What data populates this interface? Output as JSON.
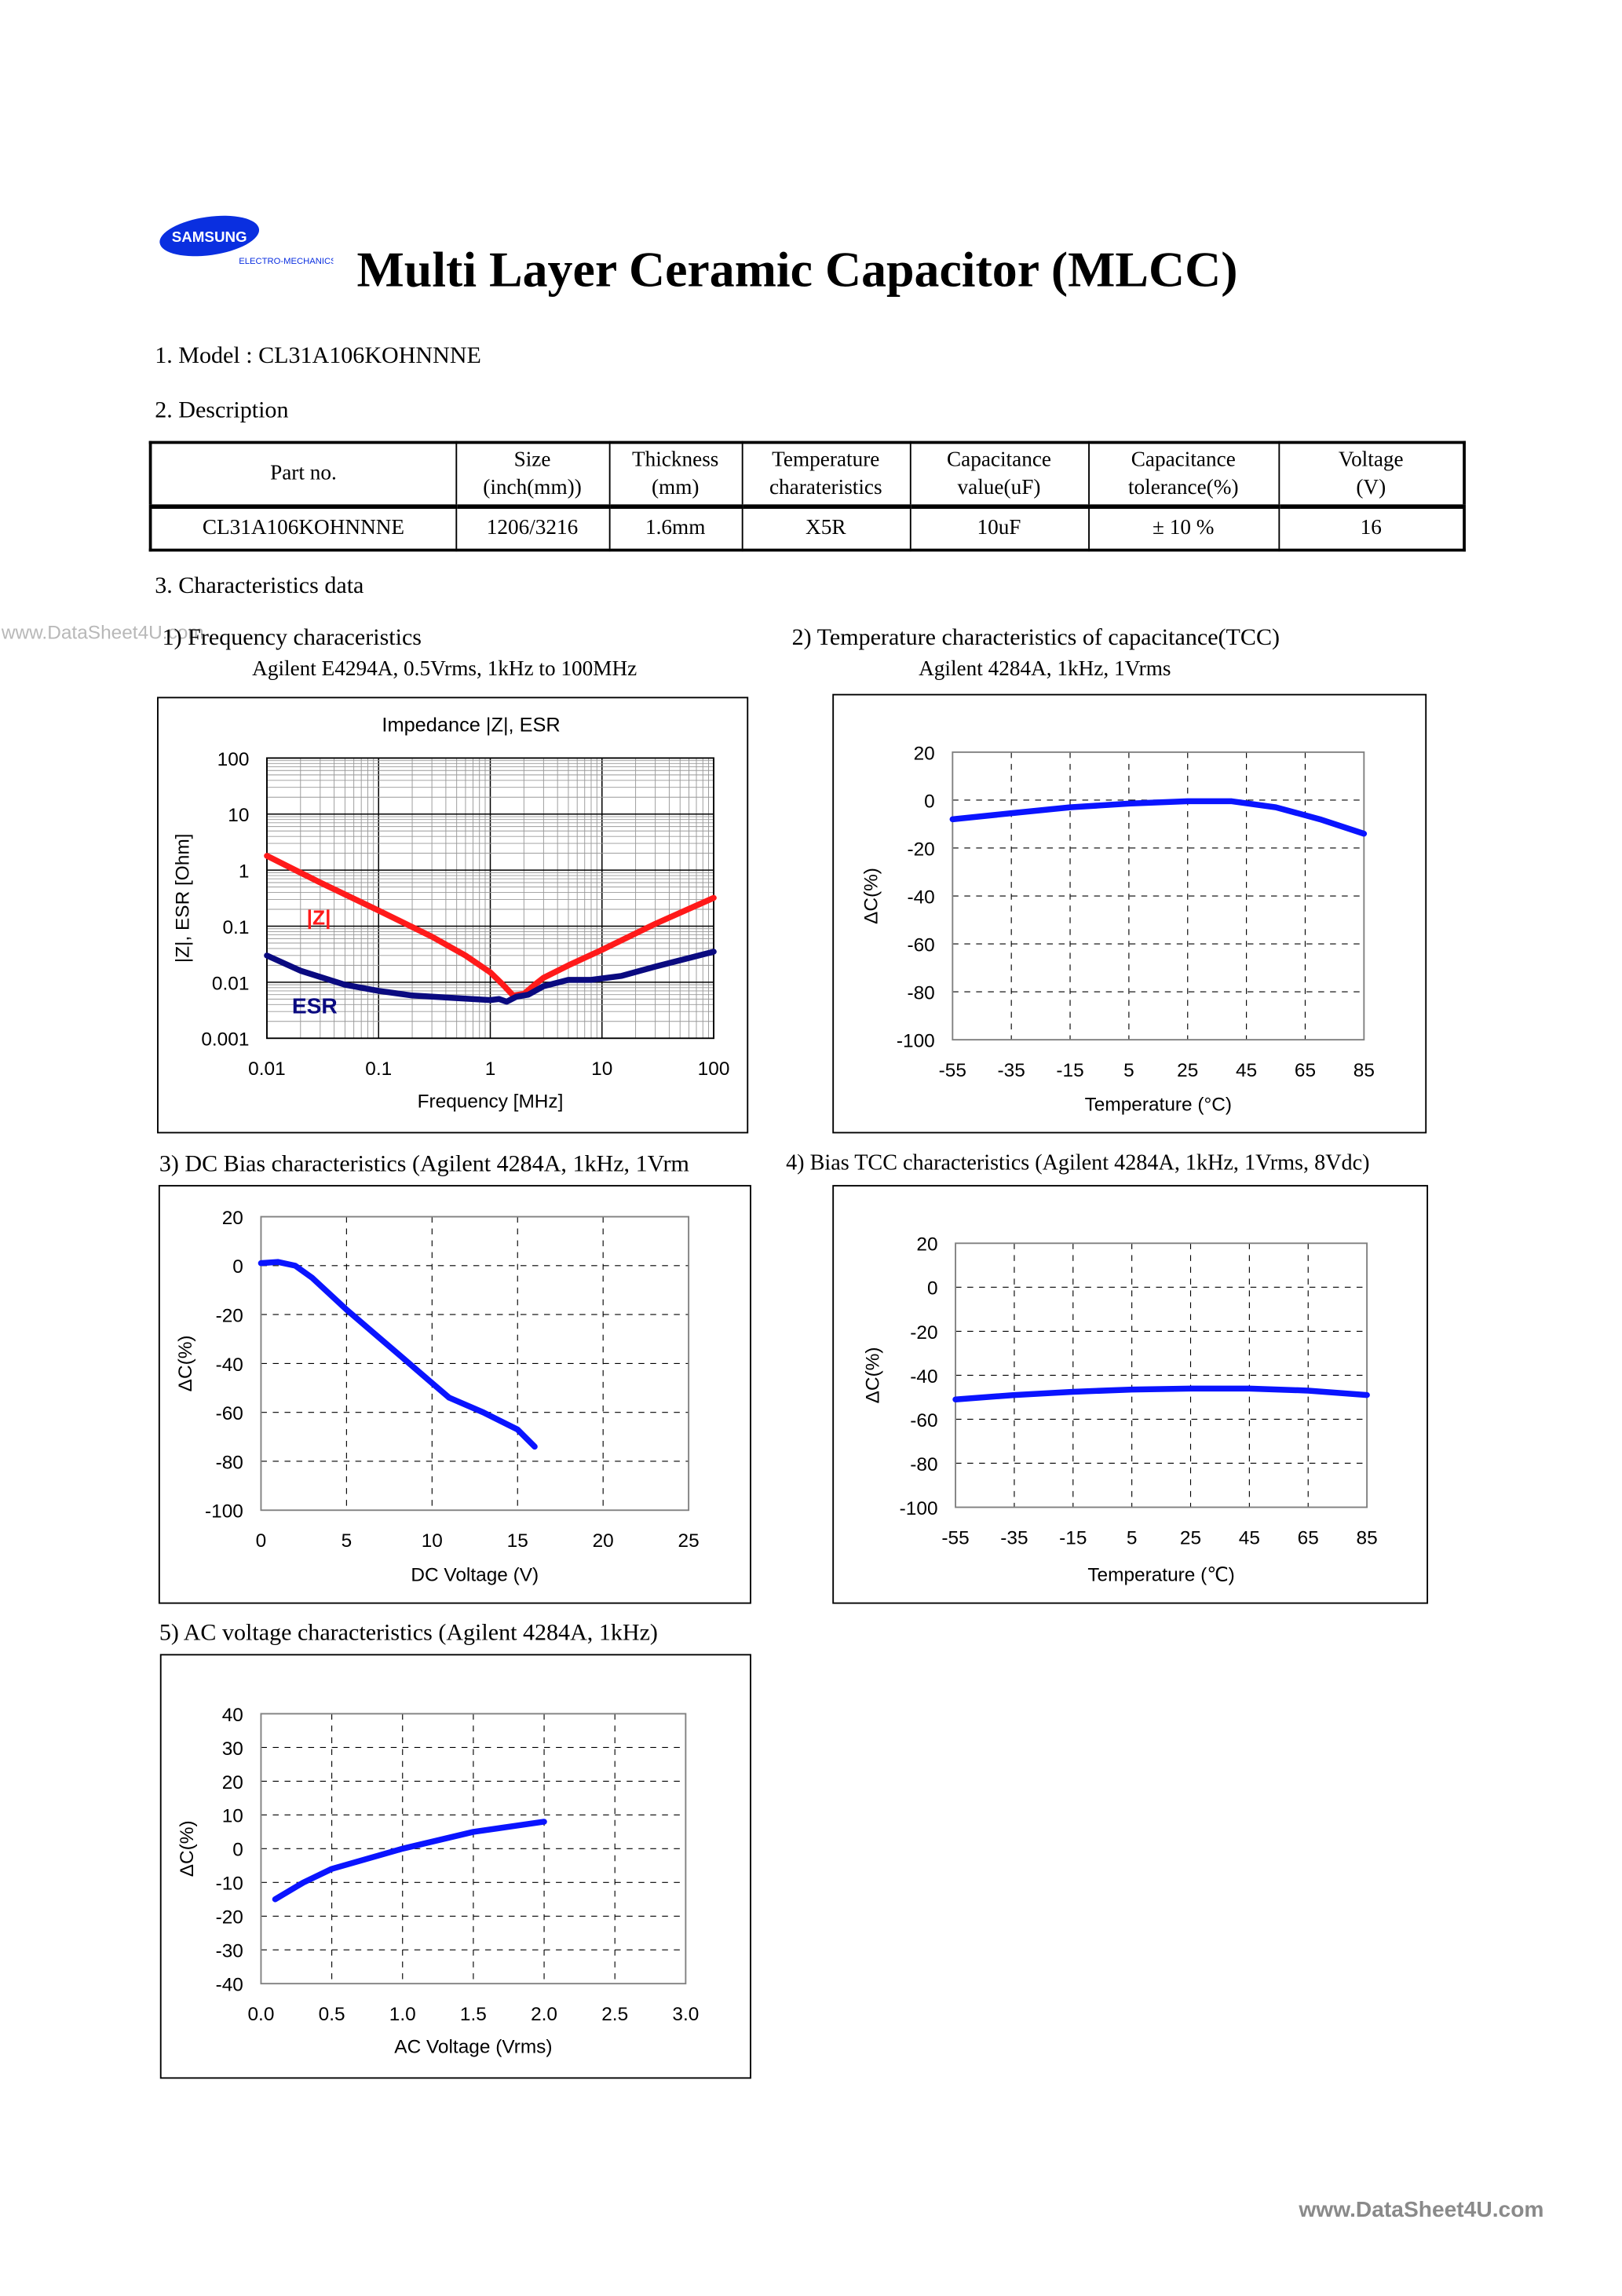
{
  "header": {
    "logo_text": "SAMSUNG",
    "logo_subtext": "ELECTRO-MECHANICS",
    "title": "Multi Layer Ceramic Capacitor (MLCC)"
  },
  "model_line": "1. Model : CL31A106KOHNNNE",
  "description_heading": "2. Description",
  "table": {
    "headers": [
      [
        "Part no.",
        ""
      ],
      [
        "Size",
        "(inch(mm))"
      ],
      [
        "Thickness",
        "(mm)"
      ],
      [
        "Temperature",
        "charateristics"
      ],
      [
        "Capacitance",
        "value(uF)"
      ],
      [
        "Capacitance",
        "tolerance(%)"
      ],
      [
        "Voltage",
        "(V)"
      ]
    ],
    "row": [
      "CL31A106KOHNNNE",
      "1206/3216",
      "1.6mm",
      "X5R",
      "10uF",
      "± 10 %",
      "16"
    ]
  },
  "characteristics_heading": "3. Characteristics data",
  "sections": {
    "s1_title": "1) Frequency characeristics",
    "s1_sub": "Agilent E4294A, 0.5Vrms, 1kHz to 100MHz",
    "s2_title": "2) Temperature characteristics of capacitance(TCC)",
    "s2_sub": "Agilent 4284A, 1kHz, 1Vrms",
    "s3_title": "3) DC Bias characteristics (Agilent 4284A, 1kHz, 1Vrm",
    "s4_title": "4) Bias TCC characteristics (Agilent 4284A, 1kHz, 1Vrms, 8Vdc)",
    "s5_title": "5) AC voltage characteristics (Agilent 4284A, 1kHz)"
  },
  "watermark": "www.DataSheet4U.com",
  "footer": "www.DataSheet4U.com",
  "colors": {
    "z": "#ff1a1a",
    "esr": "#0a0a80",
    "curve": "#0a14ff",
    "logo": "#0a2fe0"
  },
  "chart_data": [
    {
      "type": "line",
      "title": "Impedance |Z|,  ESR",
      "xlabel": "Frequency [MHz]",
      "ylabel": "|Z|, ESR [Ohm]",
      "xscale": "log",
      "yscale": "log",
      "xlim": [
        0.01,
        100
      ],
      "ylim": [
        0.001,
        100
      ],
      "x_ticks": [
        "0.01",
        "0.1",
        "1",
        "10",
        "100"
      ],
      "y_ticks": [
        "0.001",
        "0.01",
        "0.1",
        "1",
        "10",
        "100"
      ],
      "grid": "solid-log",
      "series": [
        {
          "name": "|Z|",
          "color": "#ff1a1a",
          "x": [
            0.01,
            0.03,
            0.1,
            0.3,
            0.6,
            1,
            1.3,
            1.6,
            2,
            2.5,
            3,
            5,
            10,
            30,
            100
          ],
          "y": [
            1.8,
            0.6,
            0.19,
            0.065,
            0.03,
            0.015,
            0.009,
            0.0058,
            0.0062,
            0.009,
            0.012,
            0.02,
            0.038,
            0.11,
            0.32
          ]
        },
        {
          "name": "ESR",
          "color": "#0a0a80",
          "x": [
            0.01,
            0.02,
            0.05,
            0.1,
            0.2,
            0.5,
            1,
            1.2,
            1.4,
            1.7,
            2.2,
            3,
            5,
            8,
            15,
            30,
            100
          ],
          "y": [
            0.03,
            0.016,
            0.009,
            0.007,
            0.0058,
            0.0052,
            0.0048,
            0.005,
            0.0045,
            0.0055,
            0.006,
            0.0085,
            0.011,
            0.011,
            0.013,
            0.019,
            0.035
          ]
        }
      ]
    },
    {
      "type": "line",
      "xlabel": "Temperature (°C)",
      "ylabel": "ΔC(%)",
      "xlim": [
        -55,
        85
      ],
      "ylim": [
        -100,
        20
      ],
      "x_ticks": [
        "-55",
        "-35",
        "-15",
        "5",
        "25",
        "45",
        "65",
        "85"
      ],
      "y_ticks": [
        "-100",
        "-80",
        "-60",
        "-40",
        "-20",
        "0",
        "20"
      ],
      "grid": "dashed",
      "series": [
        {
          "color": "#0a14ff",
          "x": [
            -55,
            -35,
            -15,
            5,
            25,
            40,
            55,
            70,
            85
          ],
          "y": [
            -8,
            -5.5,
            -3,
            -1.5,
            -0.5,
            -0.5,
            -3,
            -8,
            -14
          ]
        }
      ]
    },
    {
      "type": "line",
      "xlabel": "DC Voltage (V)",
      "ylabel": "ΔC(%)",
      "xlim": [
        0,
        25
      ],
      "ylim": [
        -100,
        20
      ],
      "x_ticks": [
        "0",
        "5",
        "10",
        "15",
        "20",
        "25"
      ],
      "y_ticks": [
        "-100",
        "-80",
        "-60",
        "-40",
        "-20",
        "0",
        "20"
      ],
      "grid": "dashed",
      "series": [
        {
          "color": "#0a14ff",
          "x": [
            0,
            1,
            2,
            3,
            5,
            7,
            9,
            10,
            11,
            13,
            15,
            16
          ],
          "y": [
            1,
            1.5,
            0,
            -5,
            -18,
            -30,
            -42,
            -48,
            -54,
            -60,
            -67,
            -74
          ]
        }
      ]
    },
    {
      "type": "line",
      "xlabel": "Temperature (℃)",
      "ylabel": "ΔC(%)",
      "xlim": [
        -55,
        85
      ],
      "ylim": [
        -100,
        20
      ],
      "x_ticks": [
        "-55",
        "-35",
        "-15",
        "5",
        "25",
        "45",
        "65",
        "85"
      ],
      "y_ticks": [
        "-100",
        "-80",
        "-60",
        "-40",
        "-20",
        "0",
        "20"
      ],
      "grid": "dashed",
      "series": [
        {
          "color": "#0a14ff",
          "x": [
            -55,
            -35,
            -15,
            5,
            25,
            45,
            65,
            85
          ],
          "y": [
            -51,
            -49,
            -47.5,
            -46.5,
            -46,
            -46,
            -47,
            -49
          ]
        }
      ]
    },
    {
      "type": "line",
      "xlabel": "AC Voltage (Vrms)",
      "ylabel": "ΔC(%)",
      "xlim": [
        0,
        3
      ],
      "ylim": [
        -40,
        40
      ],
      "x_ticks": [
        "0.0",
        "0.5",
        "1.0",
        "1.5",
        "2.0",
        "2.5",
        "3.0"
      ],
      "y_ticks": [
        "-40",
        "-30",
        "-20",
        "-10",
        "0",
        "10",
        "20",
        "30",
        "40"
      ],
      "grid": "dashed",
      "series": [
        {
          "color": "#0a14ff",
          "x": [
            0.1,
            0.3,
            0.5,
            1.0,
            1.5,
            2.0
          ],
          "y": [
            -15,
            -10,
            -6,
            0,
            5,
            8
          ]
        }
      ]
    }
  ]
}
